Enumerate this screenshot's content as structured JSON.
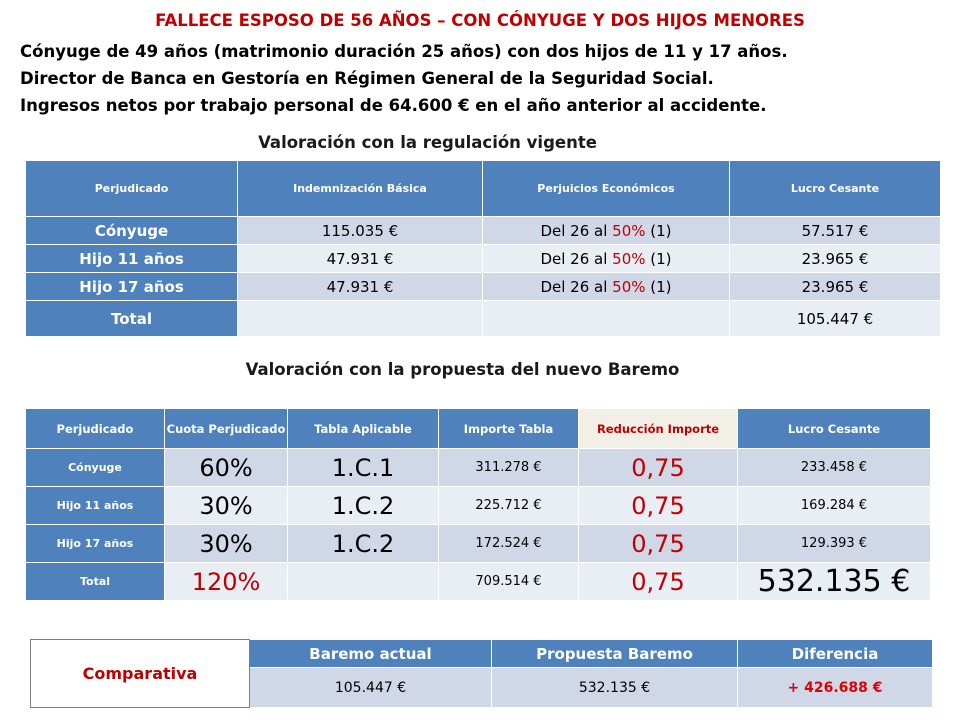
{
  "title": "FALLECE ESPOSO DE 56 AÑOS – CON CÓNYUGE Y DOS HIJOS MENORES",
  "intro": [
    "Cónyuge de 49 años (matrimonio duración 25 años) con dos hijos de 11 y 17 años.",
    "Director de Banca en Gestoría en Régimen General de la Seguridad Social.",
    "Ingresos netos por trabajo personal de 64.600 € en el año anterior al accidente."
  ],
  "section1": {
    "title": "Valoración con la regulación vigente",
    "headers": [
      "Perjudicado",
      "Indemnización Básica",
      "Perjuicios Económicos",
      "Lucro Cesante"
    ],
    "rows": [
      {
        "label": "Cónyuge",
        "basica": "115.035 €",
        "perj_prefix": "Del 26 al ",
        "perj_pct": "50%",
        "perj_suffix": " (1)",
        "lucro": "57.517 €"
      },
      {
        "label": "Hijo 11 años",
        "basica": "47.931 €",
        "perj_prefix": "Del 26 al ",
        "perj_pct": "50%",
        "perj_suffix": " (1)",
        "lucro": "23.965 €"
      },
      {
        "label": "Hijo 17 años",
        "basica": "47.931 €",
        "perj_prefix": "Del 26 al ",
        "perj_pct": "50%",
        "perj_suffix": " (1)",
        "lucro": "23.965 €"
      }
    ],
    "total_label": "Total",
    "total_value": "105.447 €"
  },
  "section2": {
    "title": "Valoración con la propuesta del nuevo Baremo",
    "headers": [
      "Perjudicado",
      "Cuota Perjudicado",
      "Tabla Aplicable",
      "Importe Tabla",
      "Reducción Importe",
      "Lucro Cesante"
    ],
    "rows": [
      {
        "label": "Cónyuge",
        "cuota": "60%",
        "tabla": "1.C.1",
        "importe": "311.278 €",
        "reduccion": "0,75",
        "lucro": "233.458 €"
      },
      {
        "label": "Hijo 11 años",
        "cuota": "30%",
        "tabla": "1.C.2",
        "importe": "225.712 €",
        "reduccion": "0,75",
        "lucro": "169.284 €"
      },
      {
        "label": "Hijo 17 años",
        "cuota": "30%",
        "tabla": "1.C.2",
        "importe": "172.524 €",
        "reduccion": "0,75",
        "lucro": "129.393 €"
      }
    ],
    "total": {
      "label": "Total",
      "cuota": "120%",
      "importe": "709.514 €",
      "reduccion": "0,75",
      "lucro": "532.135 €"
    }
  },
  "comparativa": {
    "label": "Comparativa",
    "headers": [
      "Baremo actual",
      "Propuesta Baremo",
      "Diferencia"
    ],
    "values": [
      "105.447 €",
      "532.135 €",
      "+ 426.688 €"
    ]
  },
  "colors": {
    "header_blue": "#4f81bd",
    "row_dark": "#d0d8e8",
    "row_light": "#e9edf4",
    "accent_red": "#c00000"
  }
}
